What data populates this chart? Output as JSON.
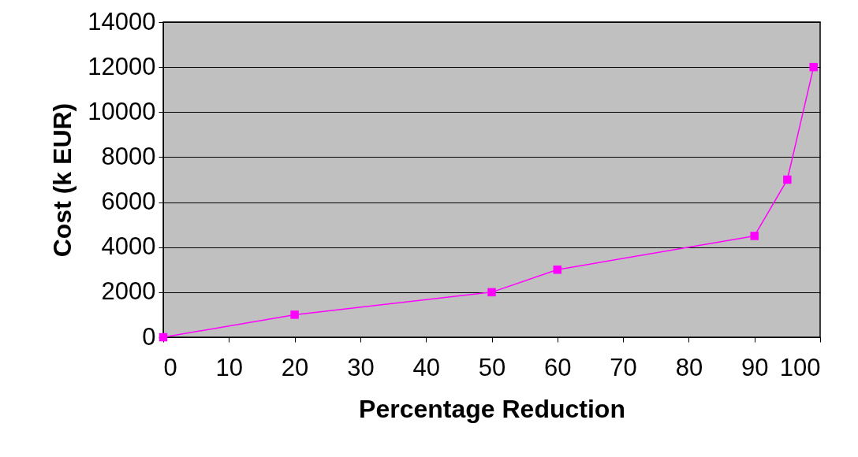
{
  "chart_data": {
    "type": "line",
    "xlabel": "Percentage Reduction",
    "ylabel": "Cost (k EUR)",
    "x": [
      0,
      20,
      50,
      60,
      90,
      95,
      99
    ],
    "series": [
      {
        "color": "#ff00ff",
        "values": [
          0,
          1000,
          2000,
          3000,
          4500,
          7000,
          12000
        ]
      }
    ],
    "xlim": [
      0,
      100
    ],
    "xticks": [
      0,
      10,
      20,
      30,
      40,
      50,
      60,
      70,
      80,
      90,
      100
    ],
    "ylim": [
      0,
      14000
    ],
    "yticks": [
      0,
      2000,
      4000,
      6000,
      8000,
      10000,
      12000,
      14000
    ],
    "grid": "y",
    "marker": "square"
  }
}
